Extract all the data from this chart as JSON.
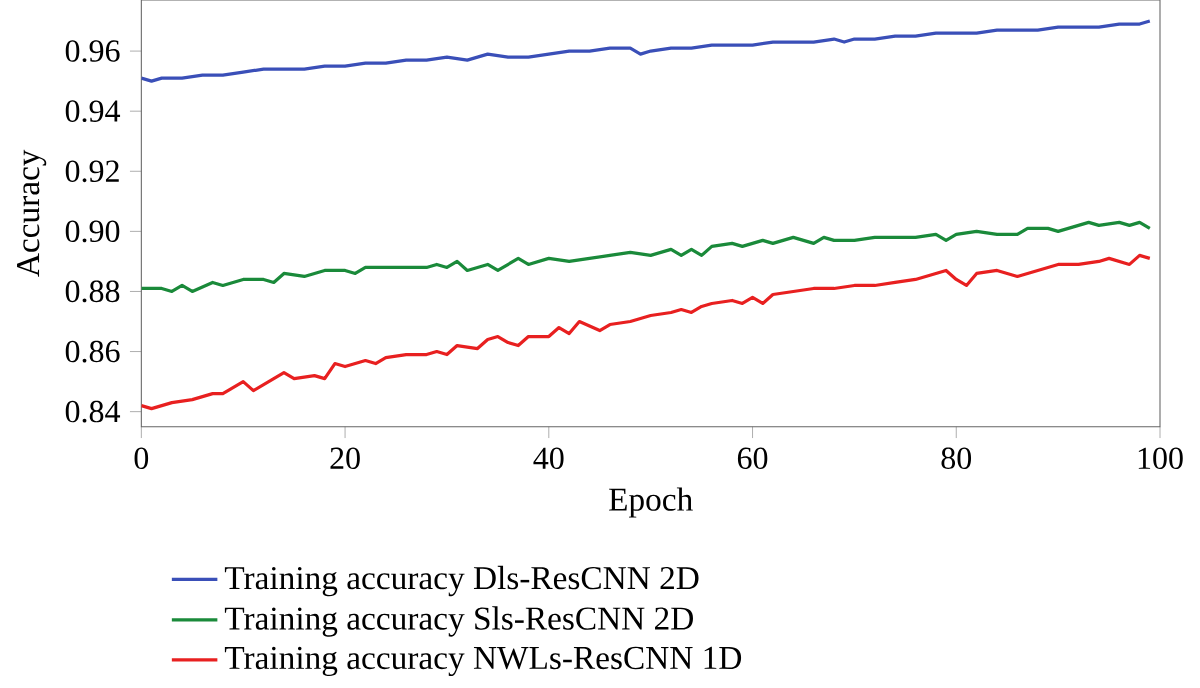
{
  "chart_data": {
    "type": "line",
    "xlabel": "Epoch",
    "ylabel": "Accuracy",
    "xlim": [
      0,
      100
    ],
    "ylim": [
      0.835,
      0.977
    ],
    "xticks": [
      0,
      20,
      40,
      60,
      80,
      100
    ],
    "yticks": [
      {
        "value": 0.84,
        "label": "0.84"
      },
      {
        "value": 0.86,
        "label": "0.86"
      },
      {
        "value": 0.88,
        "label": "0.88"
      },
      {
        "value": 0.9,
        "label": "0.90"
      },
      {
        "value": 0.92,
        "label": "0.92"
      },
      {
        "value": 0.94,
        "label": "0.94"
      },
      {
        "value": 0.96,
        "label": "0.96"
      }
    ],
    "legend": "bottom",
    "grid": false,
    "marker": "none",
    "line_style": "solid",
    "series": [
      {
        "name": "Training accuracy Dls-ResCNN 2D",
        "color": "#3a4fb8",
        "x": [
          0,
          1,
          2,
          4,
          6,
          8,
          10,
          12,
          14,
          16,
          18,
          20,
          22,
          24,
          26,
          28,
          30,
          32,
          34,
          36,
          38,
          40,
          42,
          44,
          46,
          48,
          49,
          50,
          52,
          54,
          56,
          58,
          60,
          62,
          64,
          66,
          68,
          69,
          70,
          72,
          74,
          76,
          78,
          80,
          82,
          84,
          86,
          88,
          90,
          92,
          94,
          96,
          98,
          99
        ],
        "values": [
          0.951,
          0.95,
          0.951,
          0.951,
          0.952,
          0.952,
          0.953,
          0.954,
          0.954,
          0.954,
          0.955,
          0.955,
          0.956,
          0.956,
          0.957,
          0.957,
          0.958,
          0.957,
          0.959,
          0.958,
          0.958,
          0.959,
          0.96,
          0.96,
          0.961,
          0.961,
          0.959,
          0.96,
          0.961,
          0.961,
          0.962,
          0.962,
          0.962,
          0.963,
          0.963,
          0.963,
          0.964,
          0.963,
          0.964,
          0.964,
          0.965,
          0.965,
          0.966,
          0.966,
          0.966,
          0.967,
          0.967,
          0.967,
          0.968,
          0.968,
          0.968,
          0.969,
          0.969,
          0.97
        ]
      },
      {
        "name": "Training accuracy Sls-ResCNN 2D",
        "color": "#1a8a3a",
        "x": [
          0,
          2,
          3,
          4,
          5,
          7,
          8,
          10,
          12,
          13,
          14,
          16,
          18,
          20,
          21,
          22,
          24,
          26,
          28,
          29,
          30,
          31,
          32,
          34,
          35,
          37,
          38,
          40,
          42,
          44,
          46,
          48,
          50,
          52,
          53,
          54,
          55,
          56,
          58,
          59,
          60,
          61,
          62,
          64,
          65,
          66,
          67,
          68,
          70,
          72,
          74,
          76,
          78,
          79,
          80,
          82,
          84,
          86,
          87,
          88,
          89,
          90,
          92,
          93,
          94,
          96,
          97,
          98,
          99
        ],
        "values": [
          0.881,
          0.881,
          0.88,
          0.882,
          0.88,
          0.883,
          0.882,
          0.884,
          0.884,
          0.883,
          0.886,
          0.885,
          0.887,
          0.887,
          0.886,
          0.888,
          0.888,
          0.888,
          0.888,
          0.889,
          0.888,
          0.89,
          0.887,
          0.889,
          0.887,
          0.891,
          0.889,
          0.891,
          0.89,
          0.891,
          0.892,
          0.893,
          0.892,
          0.894,
          0.892,
          0.894,
          0.892,
          0.895,
          0.896,
          0.895,
          0.896,
          0.897,
          0.896,
          0.898,
          0.897,
          0.896,
          0.898,
          0.897,
          0.897,
          0.898,
          0.898,
          0.898,
          0.899,
          0.897,
          0.899,
          0.9,
          0.899,
          0.899,
          0.901,
          0.901,
          0.901,
          0.9,
          0.902,
          0.903,
          0.902,
          0.903,
          0.902,
          0.903,
          0.901
        ]
      },
      {
        "name": "Training accuracy NWLs-ResCNN 1D",
        "color": "#e82020",
        "x": [
          0,
          1,
          3,
          5,
          7,
          8,
          10,
          11,
          13,
          14,
          15,
          17,
          18,
          19,
          20,
          22,
          23,
          24,
          26,
          28,
          29,
          30,
          31,
          33,
          34,
          35,
          36,
          37,
          38,
          40,
          41,
          42,
          43,
          45,
          46,
          48,
          49,
          50,
          52,
          53,
          54,
          55,
          56,
          58,
          59,
          60,
          61,
          62,
          64,
          66,
          68,
          70,
          72,
          74,
          76,
          78,
          79,
          80,
          81,
          82,
          84,
          86,
          88,
          90,
          92,
          94,
          95,
          97,
          98,
          99
        ],
        "values": [
          0.842,
          0.841,
          0.843,
          0.844,
          0.846,
          0.846,
          0.85,
          0.847,
          0.851,
          0.853,
          0.851,
          0.852,
          0.851,
          0.856,
          0.855,
          0.857,
          0.856,
          0.858,
          0.859,
          0.859,
          0.86,
          0.859,
          0.862,
          0.861,
          0.864,
          0.865,
          0.863,
          0.862,
          0.865,
          0.865,
          0.868,
          0.866,
          0.87,
          0.867,
          0.869,
          0.87,
          0.871,
          0.872,
          0.873,
          0.874,
          0.873,
          0.875,
          0.876,
          0.877,
          0.876,
          0.878,
          0.876,
          0.879,
          0.88,
          0.881,
          0.881,
          0.882,
          0.882,
          0.883,
          0.884,
          0.886,
          0.887,
          0.884,
          0.882,
          0.886,
          0.887,
          0.885,
          0.887,
          0.889,
          0.889,
          0.89,
          0.891,
          0.889,
          0.892,
          0.891
        ]
      }
    ]
  }
}
